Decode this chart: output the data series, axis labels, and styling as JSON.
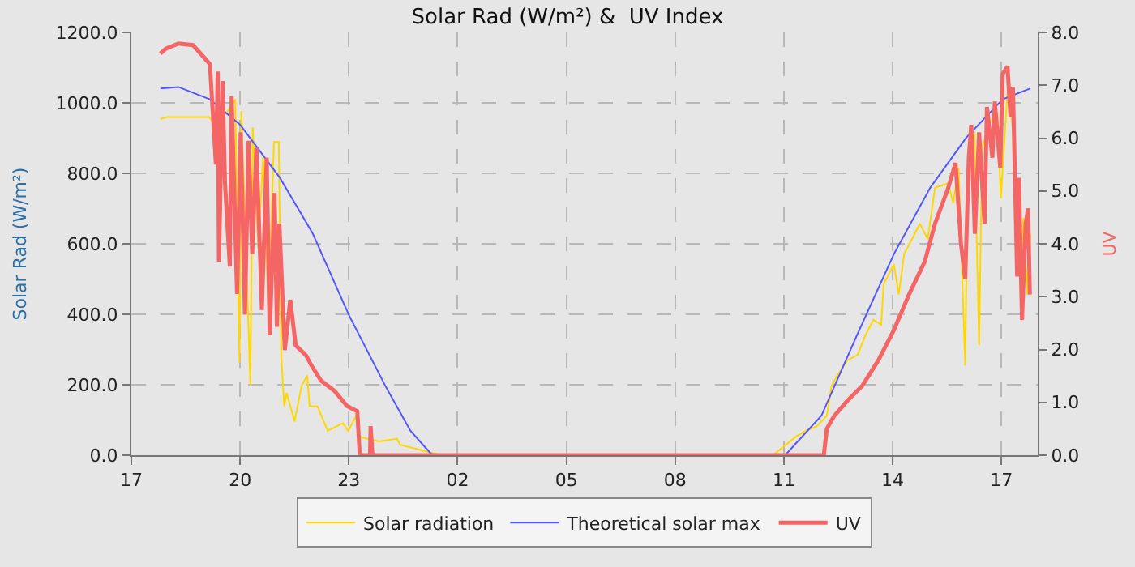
{
  "chart_data": {
    "type": "line",
    "title": "Solar Rad (W/m²) &  UV Index",
    "ylabel": "Solar Rad (W/m²)",
    "y2label": "UV",
    "xlim": [
      "--01-01T17:00",
      "--01-02T18:00"
    ],
    "xticks": [
      {
        "value": "--01-01T17:00",
        "label": "17"
      },
      {
        "value": "--01-01T20:00",
        "label": "20"
      },
      {
        "value": "--01-01T23:00",
        "label": "23"
      },
      {
        "value": "--01-02T02:00",
        "label": "02"
      },
      {
        "value": "--01-02T05:00",
        "label": "05"
      },
      {
        "value": "--01-02T08:00",
        "label": "08"
      },
      {
        "value": "--01-02T11:00",
        "label": "11"
      },
      {
        "value": "--01-02T14:00",
        "label": "14"
      },
      {
        "value": "--01-02T17:00",
        "label": "17"
      }
    ],
    "ylim": [
      0,
      1200
    ],
    "yticks": [
      {
        "value": 0,
        "label": "0.0"
      },
      {
        "value": 200,
        "label": "200.0"
      },
      {
        "value": 400,
        "label": "400.0"
      },
      {
        "value": 600,
        "label": "600.0"
      },
      {
        "value": 800,
        "label": "800.0"
      },
      {
        "value": 1000,
        "label": "1000.0"
      },
      {
        "value": 1200,
        "label": "1200.0"
      }
    ],
    "y2lim": [
      0,
      8
    ],
    "y2ticks": [
      {
        "value": 0,
        "label": "0.0"
      },
      {
        "value": 1,
        "label": "1.0"
      },
      {
        "value": 2,
        "label": "2.0"
      },
      {
        "value": 3,
        "label": "3.0"
      },
      {
        "value": 4,
        "label": "4.0"
      },
      {
        "value": 5,
        "label": "5.0"
      },
      {
        "value": 6,
        "label": "6.0"
      },
      {
        "value": 7,
        "label": "7.0"
      },
      {
        "value": 8,
        "label": "8.0"
      }
    ],
    "grid": true,
    "legend": "bottom",
    "marker": "none",
    "line_style": "solid",
    "series": [
      {
        "name": "Solar radiation",
        "color": "#ffd700",
        "x": [
          "--01-01T17:48",
          "--01-01T18:00",
          "--01-01T19:09",
          "--01-01T19:22",
          "--01-01T19:52",
          "--01-01T19:59",
          "--01-01T20:02",
          "--01-01T20:17",
          "--01-01T20:21",
          "--01-01T20:30",
          "--01-01T20:38",
          "--01-01T20:47",
          "--01-01T20:56",
          "--01-01T21:04",
          "--01-01T21:08",
          "--01-01T21:13",
          "--01-01T21:17",
          "--01-01T21:30",
          "--01-01T21:42",
          "--01-01T21:51",
          "--01-01T21:55",
          "--01-01T22:08",
          "--01-01T22:25",
          "--01-01T22:50",
          "--01-01T22:59",
          "--01-01T23:12",
          "--01-01T23:16",
          "--01-01T23:50",
          "--01-02T00:20",
          "--01-02T00:24",
          "--01-02T01:24",
          "--01-02T01:33",
          "--01-02T10:42",
          "--01-02T11:20",
          "--01-02T11:36",
          "--01-02T11:54",
          "--01-02T12:02",
          "--01-02T12:11",
          "--01-02T12:19",
          "--01-02T12:28",
          "--01-02T12:45",
          "--01-02T13:02",
          "--01-02T13:15",
          "--01-02T13:28",
          "--01-02T13:41",
          "--01-02T13:45",
          "--01-02T14:02",
          "--01-02T14:10",
          "--01-02T14:19",
          "--01-02T14:45",
          "--01-02T14:58",
          "--01-02T15:10",
          "--01-02T15:32",
          "--01-02T15:40",
          "--01-02T15:49",
          "--01-02T16:00",
          "--01-02T16:04",
          "--01-02T16:15",
          "--01-02T16:23",
          "--01-02T16:28",
          "--01-02T16:41",
          "--01-02T16:53",
          "--01-02T16:59",
          "--01-02T17:11",
          "--01-02T17:19",
          "--01-02T17:32",
          "--01-02T17:36",
          "--01-02T17:43",
          "--01-02T17:48"
        ],
        "values": [
          954,
          960,
          960,
          931,
          1010,
          263,
          977,
          198,
          931,
          587,
          846,
          398,
          889,
          889,
          285,
          139,
          177,
          96,
          198,
          226,
          139,
          139,
          69,
          91,
          69,
          112,
          53,
          39,
          47,
          30,
          4,
          0,
          0,
          53,
          69,
          82,
          96,
          112,
          197,
          226,
          269,
          285,
          341,
          384,
          370,
          485,
          542,
          456,
          571,
          657,
          614,
          759,
          772,
          716,
          816,
          255,
          772,
          917,
          312,
          873,
          945,
          974,
          729,
          1060,
          917,
          456,
          673,
          456,
          628
        ]
      },
      {
        "name": "Theoretical solar max",
        "color": "#5555ff",
        "x": [
          "--01-01T17:48",
          "--01-01T18:18",
          "--01-01T19:10",
          "--01-01T20:00",
          "--01-01T21:06",
          "--01-01T22:00",
          "--01-01T23:00",
          "--01-02T00:00",
          "--01-02T00:42",
          "--01-02T01:16",
          "--01-02T01:24",
          "--01-02T11:02",
          "--01-02T12:02",
          "--01-02T13:01",
          "--01-02T14:02",
          "--01-02T15:02",
          "--01-02T16:02",
          "--01-02T17:02",
          "--01-02T17:48"
        ],
        "values": [
          1041,
          1045,
          1010,
          938,
          787,
          630,
          398,
          198,
          69,
          4,
          0,
          0,
          112,
          341,
          571,
          759,
          902,
          1010,
          1041
        ]
      },
      {
        "name": "UV",
        "color": "#f46565",
        "axis": "y2",
        "x": [
          "--01-01T17:48",
          "--01-01T17:57",
          "--01-01T18:18",
          "--01-01T18:42",
          "--01-01T19:10",
          "--01-01T19:20",
          "--01-01T19:23",
          "--01-01T19:25",
          "--01-01T19:31",
          "--01-01T19:35",
          "--01-01T19:43",
          "--01-01T19:46",
          "--01-01T19:55",
          "--01-01T20:01",
          "--01-01T20:08",
          "--01-01T20:14",
          "--01-01T20:20",
          "--01-01T20:27",
          "--01-01T20:36",
          "--01-01T20:44",
          "--01-01T20:49",
          "--01-01T20:57",
          "--01-01T21:01",
          "--01-01T21:05",
          "--01-01T21:14",
          "--01-01T21:23",
          "--01-01T21:32",
          "--01-01T21:49",
          "--01-01T21:58",
          "--01-01T22:14",
          "--01-01T22:36",
          "--01-01T22:57",
          "--01-01T23:14",
          "--01-01T23:18",
          "--01-01T23:35",
          "--01-01T23:36",
          "--01-01T23:39",
          "--01-02T12:06",
          "--01-02T12:11",
          "--01-02T12:23",
          "--01-02T12:45",
          "--01-02T13:10",
          "--01-02T13:36",
          "--01-02T14:02",
          "--01-02T14:27",
          "--01-02T14:53",
          "--01-02T15:10",
          "--01-02T15:32",
          "--01-02T15:44",
          "--01-02T15:53",
          "--01-02T16:00",
          "--01-02T16:06",
          "--01-02T16:10",
          "--01-02T16:16",
          "--01-02T16:23",
          "--01-02T16:32",
          "--01-02T16:36",
          "--01-02T16:45",
          "--01-02T16:49",
          "--01-02T16:58",
          "--01-02T17:02",
          "--01-02T17:10",
          "--01-02T17:15",
          "--01-02T17:19",
          "--01-02T17:26",
          "--01-02T17:29",
          "--01-02T17:34",
          "--01-02T17:40",
          "--01-02T17:44",
          "--01-02T17:47"
        ],
        "values": [
          7.6,
          7.69,
          7.79,
          7.76,
          7.4,
          5.5,
          7.26,
          3.66,
          7.08,
          5.15,
          3.57,
          6.79,
          3.05,
          6.11,
          2.66,
          5.95,
          3.81,
          5.82,
          2.75,
          5.63,
          2.27,
          4.96,
          2.43,
          4.38,
          1.99,
          2.94,
          2.08,
          1.89,
          1.7,
          1.41,
          1.22,
          0.93,
          0.83,
          0,
          0,
          0.55,
          0,
          0,
          0.5,
          0.74,
          1.03,
          1.32,
          1.79,
          2.37,
          3.04,
          3.66,
          4.38,
          5.06,
          5.53,
          4.0,
          3.33,
          5.63,
          6.25,
          4.19,
          6.11,
          4.38,
          6.59,
          5.63,
          6.69,
          5.44,
          7.21,
          7.36,
          6.4,
          6.97,
          3.38,
          5.25,
          2.56,
          4.38,
          4.67,
          3.04
        ]
      }
    ]
  }
}
